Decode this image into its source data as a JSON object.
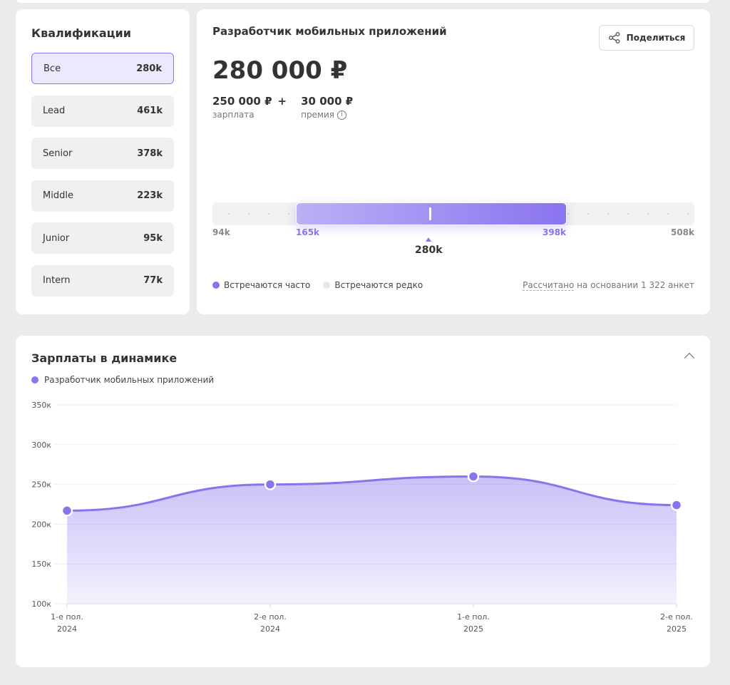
{
  "qualifications": {
    "title": "Квалификации",
    "items": [
      {
        "label": "Все",
        "value": "280k",
        "active": true
      },
      {
        "label": "Lead",
        "value": "461k"
      },
      {
        "label": "Senior",
        "value": "378k"
      },
      {
        "label": "Middle",
        "value": "223k"
      },
      {
        "label": "Junior",
        "value": "95k"
      },
      {
        "label": "Intern",
        "value": "77k"
      }
    ]
  },
  "main": {
    "title": "Разработчик мобильных приложений",
    "share_label": "Поделиться",
    "total": "280 000 ₽",
    "salary": "250 000 ₽",
    "salary_label": "зарплата",
    "plus": "+",
    "bonus": "30 000 ₽",
    "bonus_label": "премия",
    "range": {
      "min": "94k",
      "low": "165k",
      "median": "280k",
      "high": "398k",
      "max": "508k"
    },
    "legend_frequent": "Встречаются часто",
    "legend_rare": "Встречаются редко",
    "basis_link": "Рассчитано",
    "basis_rest": " на основании 1 322 анкет"
  },
  "colors": {
    "accent": "#8a73ef",
    "rare": "#e8e8e8"
  },
  "dynamics": {
    "title": "Зарплаты в динамике"
  },
  "chart_data": {
    "type": "area",
    "series": [
      {
        "name": "Разработчик мобильных приложений",
        "values": [
          217,
          250,
          260,
          224
        ]
      }
    ],
    "x": [
      [
        "1-е пол.",
        "2024"
      ],
      [
        "2-е пол.",
        "2024"
      ],
      [
        "1-е пол.",
        "2025"
      ],
      [
        "2-е пол.",
        "2025"
      ]
    ],
    "ylim": [
      100,
      350
    ],
    "yticks": [
      "100к",
      "150к",
      "200к",
      "250к",
      "300к",
      "350к"
    ],
    "unit": "k",
    "grid": true
  }
}
